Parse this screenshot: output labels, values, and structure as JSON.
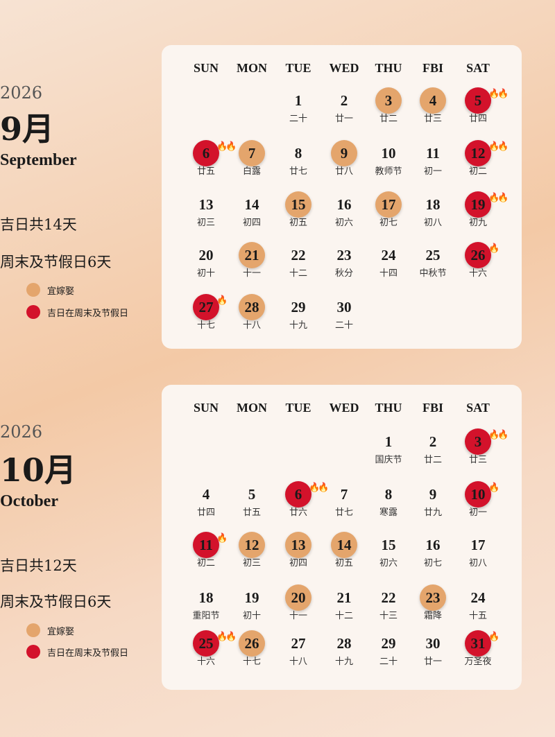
{
  "colors": {
    "auspicious": "#e4a56c",
    "holiday_auspicious": "#d3122b"
  },
  "weekdays": [
    "SUN",
    "MON",
    "TUE",
    "WED",
    "THU",
    "FBI",
    "SAT"
  ],
  "months": [
    {
      "year": "2026",
      "month": "9月",
      "english": "September",
      "good_days": "吉日共14天",
      "weekend_holiday": "周末及节假日6天",
      "legend": [
        "宜嫁娶",
        "吉日在周末及节假日"
      ],
      "start_weekday": 2,
      "days": [
        {
          "d": 1,
          "l": "二十"
        },
        {
          "d": 2,
          "l": "廿一"
        },
        {
          "d": 3,
          "l": "廿二",
          "t": "wed"
        },
        {
          "d": 4,
          "l": "廿三",
          "t": "wed"
        },
        {
          "d": 5,
          "l": "廿四",
          "t": "hol",
          "f": 2
        },
        {
          "d": 6,
          "l": "廿五",
          "t": "hol",
          "f": 2
        },
        {
          "d": 7,
          "l": "白露",
          "t": "wed"
        },
        {
          "d": 8,
          "l": "廿七"
        },
        {
          "d": 9,
          "l": "廿八",
          "t": "wed"
        },
        {
          "d": 10,
          "l": "教师节"
        },
        {
          "d": 11,
          "l": "初一"
        },
        {
          "d": 12,
          "l": "初二",
          "t": "hol",
          "f": 2
        },
        {
          "d": 13,
          "l": "初三"
        },
        {
          "d": 14,
          "l": "初四"
        },
        {
          "d": 15,
          "l": "初五",
          "t": "wed"
        },
        {
          "d": 16,
          "l": "初六"
        },
        {
          "d": 17,
          "l": "初七",
          "t": "wed"
        },
        {
          "d": 18,
          "l": "初八"
        },
        {
          "d": 19,
          "l": "初九",
          "t": "hol",
          "f": 2
        },
        {
          "d": 20,
          "l": "初十"
        },
        {
          "d": 21,
          "l": "十一",
          "t": "wed"
        },
        {
          "d": 22,
          "l": "十二"
        },
        {
          "d": 23,
          "l": "秋分"
        },
        {
          "d": 24,
          "l": "十四"
        },
        {
          "d": 25,
          "l": "中秋节"
        },
        {
          "d": 26,
          "l": "十六",
          "t": "hol",
          "f": 1
        },
        {
          "d": 27,
          "l": "十七",
          "t": "hol",
          "f": 1
        },
        {
          "d": 28,
          "l": "十八",
          "t": "wed"
        },
        {
          "d": 29,
          "l": "十九"
        },
        {
          "d": 30,
          "l": "二十"
        }
      ]
    },
    {
      "year": "2026",
      "month": "10月",
      "english": "October",
      "good_days": "吉日共12天",
      "weekend_holiday": "周末及节假日6天",
      "legend": [
        "宜嫁娶",
        "吉日在周末及节假日"
      ],
      "start_weekday": 4,
      "days": [
        {
          "d": 1,
          "l": "国庆节"
        },
        {
          "d": 2,
          "l": "廿二"
        },
        {
          "d": 3,
          "l": "廿三",
          "t": "hol",
          "f": 2
        },
        {
          "d": 4,
          "l": "廿四"
        },
        {
          "d": 5,
          "l": "廿五"
        },
        {
          "d": 6,
          "l": "廿六",
          "t": "hol",
          "f": 2
        },
        {
          "d": 7,
          "l": "廿七"
        },
        {
          "d": 8,
          "l": "寒露"
        },
        {
          "d": 9,
          "l": "廿九"
        },
        {
          "d": 10,
          "l": "初一",
          "t": "hol",
          "f": 1
        },
        {
          "d": 11,
          "l": "初二",
          "t": "hol",
          "f": 1
        },
        {
          "d": 12,
          "l": "初三",
          "t": "wed"
        },
        {
          "d": 13,
          "l": "初四",
          "t": "wed"
        },
        {
          "d": 14,
          "l": "初五",
          "t": "wed"
        },
        {
          "d": 15,
          "l": "初六"
        },
        {
          "d": 16,
          "l": "初七"
        },
        {
          "d": 17,
          "l": "初八"
        },
        {
          "d": 18,
          "l": "重阳节"
        },
        {
          "d": 19,
          "l": "初十"
        },
        {
          "d": 20,
          "l": "十一",
          "t": "wed"
        },
        {
          "d": 21,
          "l": "十二"
        },
        {
          "d": 22,
          "l": "十三"
        },
        {
          "d": 23,
          "l": "霜降",
          "t": "wed"
        },
        {
          "d": 24,
          "l": "十五"
        },
        {
          "d": 25,
          "l": "十六",
          "t": "hol",
          "f": 2
        },
        {
          "d": 26,
          "l": "十七",
          "t": "wed"
        },
        {
          "d": 27,
          "l": "十八"
        },
        {
          "d": 28,
          "l": "十九"
        },
        {
          "d": 29,
          "l": "二十"
        },
        {
          "d": 30,
          "l": "廿一"
        },
        {
          "d": 31,
          "l": "万圣夜",
          "t": "hol",
          "f": 1
        }
      ]
    }
  ]
}
